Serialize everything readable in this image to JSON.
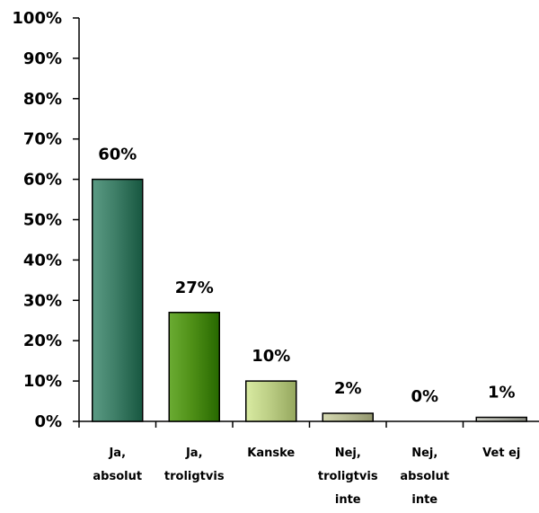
{
  "chart_data": {
    "type": "bar",
    "title": "",
    "xlabel": "",
    "ylabel": "",
    "ylim": [
      0,
      100
    ],
    "y_ticks": [
      "0%",
      "10%",
      "20%",
      "30%",
      "40%",
      "50%",
      "60%",
      "70%",
      "80%",
      "90%",
      "100%"
    ],
    "categories": [
      [
        "Ja,",
        "absolut"
      ],
      [
        "Ja,",
        "troligtvis"
      ],
      [
        "Kanske"
      ],
      [
        "Nej,",
        "troligtvis",
        "inte"
      ],
      [
        "Nej,",
        "absolut",
        "inte"
      ],
      [
        "Vet ej"
      ]
    ],
    "values": [
      60,
      27,
      10,
      2,
      0,
      1
    ],
    "value_labels": [
      "60%",
      "27%",
      "10%",
      "2%",
      "0%",
      "1%"
    ],
    "bar_colors": [
      "#3f7f68",
      "#4f9017",
      "#bdcf86",
      "#b9bd95",
      "#b2b6ac",
      "#b2b4aa"
    ],
    "grid": false,
    "legend": "none"
  }
}
